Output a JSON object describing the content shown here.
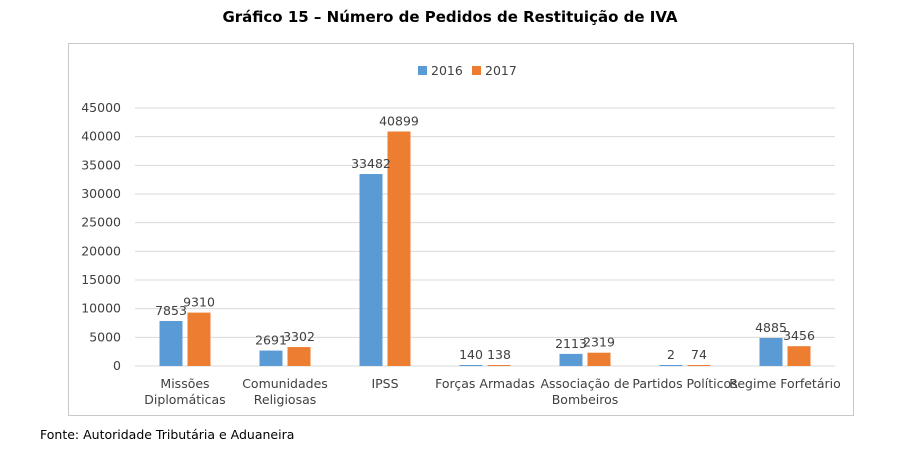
{
  "page": {
    "title": "Gráfico 15 – Número de Pedidos de Restituição de IVA",
    "source": "Fonte: Autoridade Tributária e Aduaneira"
  },
  "colors": {
    "series_2016": "#5b9bd5",
    "series_2017": "#ed7d31",
    "gridline": "#d9d9d9",
    "axis_text": "#404040",
    "frame": "#c8c8c8"
  },
  "chart_data": {
    "type": "bar",
    "title": "Gráfico 15 – Número de Pedidos de Restituição de IVA",
    "xlabel": "",
    "ylabel": "",
    "categories": [
      [
        "Missões",
        "Diplomáticas"
      ],
      [
        "Comunidades",
        "Religiosas"
      ],
      [
        "IPSS"
      ],
      [
        "Forças Armadas"
      ],
      [
        "Associação de",
        "Bombeiros"
      ],
      [
        "Partidos Políticos"
      ],
      [
        "Regime Forfetário"
      ]
    ],
    "series": [
      {
        "name": "2016",
        "values": [
          7853,
          2691,
          33482,
          140,
          2113,
          2,
          4885
        ]
      },
      {
        "name": "2017",
        "values": [
          9310,
          3302,
          40899,
          138,
          2319,
          74,
          3456
        ]
      }
    ],
    "ylim": [
      0,
      45000
    ],
    "yticks": [
      0,
      5000,
      10000,
      15000,
      20000,
      25000,
      30000,
      35000,
      40000,
      45000
    ],
    "grid": true,
    "legend": "top-center"
  }
}
